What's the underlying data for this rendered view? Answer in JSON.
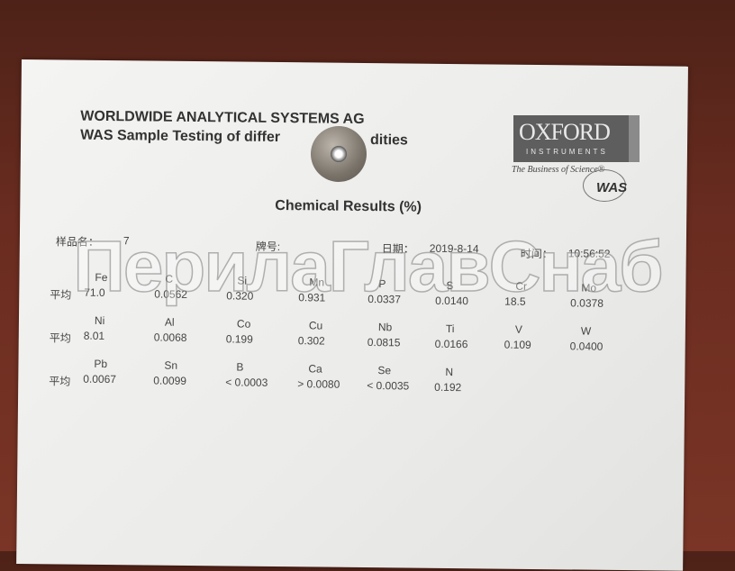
{
  "header": {
    "company": "WORLDWIDE ANALYTICAL SYSTEMS AG",
    "subtitle_left": "WAS Sample Testing of differ",
    "subtitle_right": "dities"
  },
  "logo": {
    "main": "OXFORD",
    "sub": "INSTRUMENTS",
    "tagline": "The Business of Science®",
    "mark": "WAS"
  },
  "report_title": "Chemical Results   (%)",
  "meta": {
    "sample_label": "样品名：",
    "sample_value": "7",
    "grade_label": "牌号:",
    "date_label": "日期：",
    "date_value": "2019-8-14",
    "time_label": "时间：",
    "time_value": "10:56:52"
  },
  "avg_label": "平均",
  "rows": [
    [
      {
        "el": "Fe",
        "val": "71.0"
      },
      {
        "el": "C",
        "val": "0.0562"
      },
      {
        "el": "Si",
        "val": "0.320"
      },
      {
        "el": "Mn",
        "val": "0.931"
      },
      {
        "el": "P",
        "val": "0.0337"
      },
      {
        "el": "S",
        "val": "0.0140"
      },
      {
        "el": "Cr",
        "val": "18.5"
      },
      {
        "el": "Mo",
        "val": "0.0378"
      }
    ],
    [
      {
        "el": "Ni",
        "val": "8.01"
      },
      {
        "el": "Al",
        "val": "0.0068"
      },
      {
        "el": "Co",
        "val": "0.199"
      },
      {
        "el": "Cu",
        "val": "0.302"
      },
      {
        "el": "Nb",
        "val": "0.0815"
      },
      {
        "el": "Ti",
        "val": "0.0166"
      },
      {
        "el": "V",
        "val": "0.109"
      },
      {
        "el": "W",
        "val": "0.0400"
      }
    ],
    [
      {
        "el": "Pb",
        "val": "0.0067"
      },
      {
        "el": "Sn",
        "val": "0.0099"
      },
      {
        "el": "B",
        "val": "< 0.0003"
      },
      {
        "el": "Ca",
        "val": "> 0.0080"
      },
      {
        "el": "Se",
        "val": "< 0.0035"
      },
      {
        "el": "N",
        "val": "0.192"
      }
    ]
  ],
  "watermark": "ПерилаГлавСнаб"
}
